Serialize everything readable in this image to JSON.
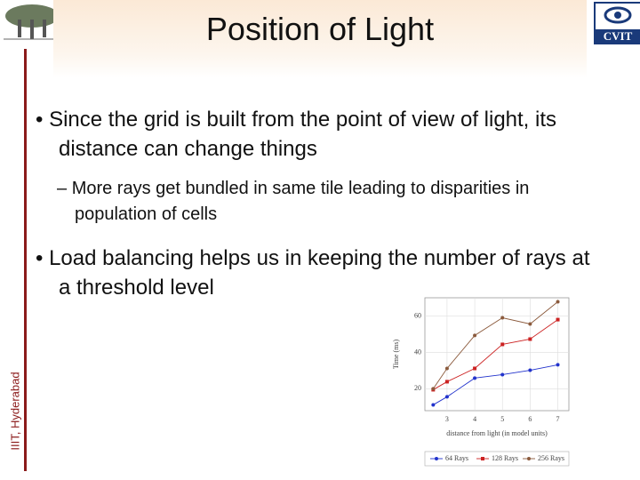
{
  "header": {
    "title": "Position of Light",
    "logo_text": "CVIT"
  },
  "side_label": "IIIT, Hyderabad",
  "bullets": [
    {
      "text": "Since the grid is built from the point of view of light, its distance can change things",
      "sub": [
        "More rays get bundled in same tile leading to disparities in population of cells"
      ]
    },
    {
      "text": "Load balancing helps us in keeping the number of rays at a threshold level",
      "sub": []
    }
  ],
  "chart_data": {
    "type": "line",
    "x_label": "distance from light (in model units)",
    "y_label": "Time (ms)",
    "x": [
      2.5,
      3,
      4,
      5,
      6,
      7
    ],
    "series": [
      {
        "name": "64 Rays",
        "color": "#2233cc",
        "marker": "circle",
        "values": [
          11.2,
          15.6,
          25.9,
          27.8,
          30.2,
          33.2
        ]
      },
      {
        "name": "128 Rays",
        "color": "#cc2222",
        "marker": "square",
        "values": [
          19.5,
          23.9,
          31.2,
          44.4,
          47.3,
          58
        ]
      },
      {
        "name": "256 Rays",
        "color": "#8b5a3c",
        "marker": "circle",
        "values": [
          20,
          31.2,
          49.3,
          59,
          55.6,
          67.8
        ]
      }
    ],
    "xlim": [
      2.2,
      7.4
    ],
    "ylim": [
      8,
      70
    ],
    "xticks": [
      3,
      4,
      5,
      6,
      7
    ],
    "yticks": [
      20,
      40,
      60
    ],
    "grid": true,
    "legend": "bottom"
  }
}
